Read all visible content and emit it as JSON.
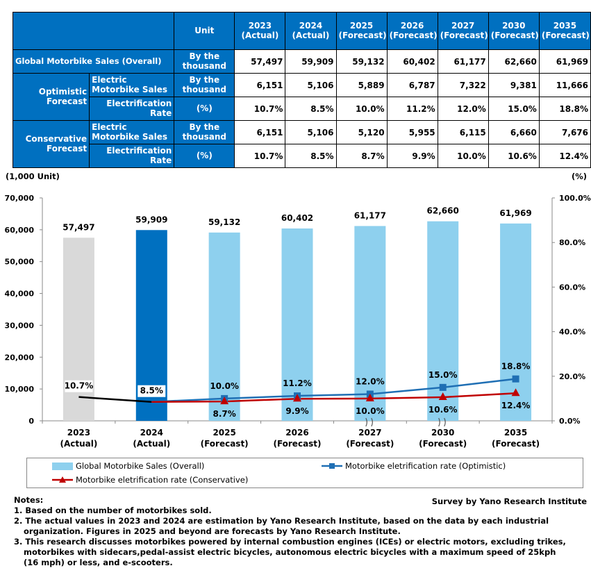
{
  "table": {
    "unit_header": "Unit",
    "year_headers": [
      [
        "2023",
        "(Actual)"
      ],
      [
        "2024",
        "(Actual)"
      ],
      [
        "2025",
        "(Forecast)"
      ],
      [
        "2026",
        "(Forecast)"
      ],
      [
        "2027",
        "(Forecast)"
      ],
      [
        "2030",
        "(Forecast)"
      ],
      [
        "2035",
        "(Forecast)"
      ]
    ],
    "rows": {
      "overall": {
        "label": "Global Motorbike Sales (Overall)",
        "unit": [
          "By the",
          "thousand"
        ],
        "values": [
          "57,497",
          "59,909",
          "59,132",
          "60,402",
          "61,177",
          "62,660",
          "61,969"
        ]
      },
      "optimistic": {
        "group": [
          "Optimistic",
          "Forecast"
        ],
        "ev": {
          "label": [
            "Electric",
            "Motorbike Sales"
          ],
          "unit": [
            "By the",
            "thousand"
          ],
          "values": [
            "6,151",
            "5,106",
            "5,889",
            "6,787",
            "7,322",
            "9,381",
            "11,666"
          ]
        },
        "rate": {
          "label": [
            "Electrification",
            "Rate"
          ],
          "unit": "(%)",
          "values": [
            "10.7%",
            "8.5%",
            "10.0%",
            "11.2%",
            "12.0%",
            "15.0%",
            "18.8%"
          ]
        }
      },
      "conservative": {
        "group": [
          "Conservative",
          "Forecast"
        ],
        "ev": {
          "label": [
            "Electric",
            "Motorbike Sales"
          ],
          "unit": [
            "By the",
            "thousand"
          ],
          "values": [
            "6,151",
            "5,106",
            "5,120",
            "5,955",
            "6,115",
            "6,660",
            "7,676"
          ]
        },
        "rate": {
          "label": [
            "Electrification",
            "Rate"
          ],
          "unit": "(%)",
          "values": [
            "10.7%",
            "8.5%",
            "8.7%",
            "9.9%",
            "10.0%",
            "10.6%",
            "12.4%"
          ]
        }
      }
    }
  },
  "chart_data": {
    "type": "bar",
    "left_axis_unit": "(1,000 Unit)",
    "right_axis_unit": "(%)",
    "categories": [
      [
        "2023",
        "(Actual)"
      ],
      [
        "2024",
        "(Actual)"
      ],
      [
        "2025",
        "(Forecast)"
      ],
      [
        "2026",
        "(Forecast)"
      ],
      [
        "2027",
        "(Forecast)"
      ],
      [
        "2030",
        "(Forecast)"
      ],
      [
        "2035",
        "(Forecast)"
      ]
    ],
    "ylim": [
      0,
      70000
    ],
    "yticks": [
      "0",
      "10,000",
      "20,000",
      "30,000",
      "40,000",
      "50,000",
      "60,000",
      "70,000"
    ],
    "y2lim": [
      0,
      100
    ],
    "y2ticks": [
      "0.0%",
      "20.0%",
      "40.0%",
      "60.0%",
      "80.0%",
      "100.0%"
    ],
    "bars": {
      "name": "Global Motorbike Sales (Overall)",
      "values": [
        57497,
        59909,
        59132,
        60402,
        61177,
        62660,
        61969
      ],
      "labels": [
        "57,497",
        "59,909",
        "59,132",
        "60,402",
        "61,177",
        "62,660",
        "61,969"
      ],
      "bar_colors": [
        "#d9d9d9",
        "#0070c0",
        "#8ed0ee",
        "#8ed0ee",
        "#8ed0ee",
        "#8ed0ee",
        "#8ed0ee"
      ]
    },
    "series": [
      {
        "name": "Motorbike eletrification rate (Optimistic)",
        "values": [
          10.7,
          8.5,
          10.0,
          11.2,
          12.0,
          15.0,
          18.8
        ],
        "labels": [
          "10.7%",
          "8.5%",
          "10.0%",
          "11.2%",
          "12.0%",
          "15.0%",
          "18.8%"
        ],
        "color": "#1f6fb4",
        "marker": "square"
      },
      {
        "name": "Motorbike eletrification rate (Conservative)",
        "values": [
          10.7,
          8.5,
          8.7,
          9.9,
          10.0,
          10.6,
          12.4
        ],
        "labels": [
          "10.7%",
          "8.5%",
          "8.7%",
          "9.9%",
          "10.0%",
          "10.6%",
          "12.4%"
        ],
        "color": "#c00000",
        "marker": "triangle"
      }
    ],
    "actual_line_color": "#000000"
  },
  "legend": {
    "bars": "Global Motorbike Sales (Overall)",
    "optimistic": "Motorbike eletrification rate (Optimistic)",
    "conservative": "Motorbike eletrification rate (Conservative)"
  },
  "notes": {
    "title": "Notes:",
    "survey": "Survey by Yano Research Institute",
    "n1": "1.  Based on the number of motorbikes sold.",
    "n2a": "2. The actual values in 2023 and 2024 are estimation by Yano Research Institute, based on the data by each industrial",
    "n2b": "organization. Figures in 2025 and beyond are forecasts by Yano Research Institute.",
    "n3a": "3. This research discusses motorbikes powered by internal combustion engines (ICEs) or electric motors, excluding trikes,",
    "n3b": "motorbikes with sidecars,pedal-assist electric bicycles, autonomous electric bicycles with a maximum speed of 25kph",
    "n3c": "(16 mph) or less, and e-scooters."
  }
}
